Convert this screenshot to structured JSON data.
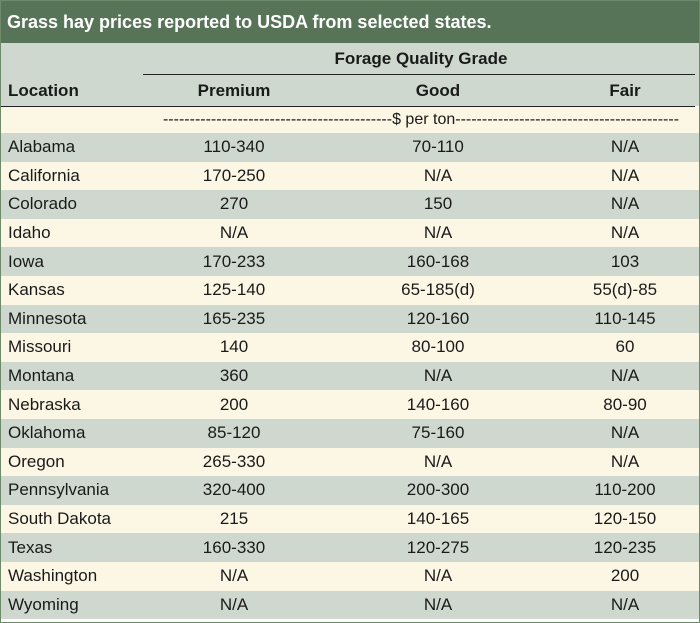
{
  "title": "Grass hay prices reported to USDA from selected states.",
  "group_header": "Forage Quality Grade",
  "columns": {
    "location": "Location",
    "premium": "Premium",
    "good": "Good",
    "fair": "Fair"
  },
  "units": "-------------------------------------------$ per ton------------------------------------------",
  "rows": [
    {
      "location": "Alabama",
      "premium": "110-340",
      "good": "70-110",
      "fair": "N/A"
    },
    {
      "location": "California",
      "premium": "170-250",
      "good": "N/A",
      "fair": "N/A"
    },
    {
      "location": "Colorado",
      "premium": "270",
      "good": "150",
      "fair": "N/A"
    },
    {
      "location": "Idaho",
      "premium": "N/A",
      "good": "N/A",
      "fair": "N/A"
    },
    {
      "location": "Iowa",
      "premium": "170-233",
      "good": "160-168",
      "fair": "103"
    },
    {
      "location": "Kansas",
      "premium": "125-140",
      "good": "65-185(d)",
      "fair": "55(d)-85"
    },
    {
      "location": "Minnesota",
      "premium": "165-235",
      "good": "120-160",
      "fair": "110-145"
    },
    {
      "location": "Missouri",
      "premium": "140",
      "good": "80-100",
      "fair": "60"
    },
    {
      "location": "Montana",
      "premium": "360",
      "good": "N/A",
      "fair": "N/A"
    },
    {
      "location": "Nebraska",
      "premium": "200",
      "good": "140-160",
      "fair": "80-90"
    },
    {
      "location": "Oklahoma",
      "premium": "85-120",
      "good": "75-160",
      "fair": "N/A"
    },
    {
      "location": "Oregon",
      "premium": "265-330",
      "good": "N/A",
      "fair": "N/A"
    },
    {
      "location": "Pennsylvania",
      "premium": "320-400",
      "good": "200-300",
      "fair": "110-200"
    },
    {
      "location": "South Dakota",
      "premium": "215",
      "good": "140-165",
      "fair": "120-150"
    },
    {
      "location": "Texas",
      "premium": "160-330",
      "good": "120-275",
      "fair": "120-235"
    },
    {
      "location": "Washington",
      "premium": "N/A",
      "good": "N/A",
      "fair": "200"
    },
    {
      "location": "Wyoming",
      "premium": "N/A",
      "good": "N/A",
      "fair": "N/A"
    }
  ]
}
